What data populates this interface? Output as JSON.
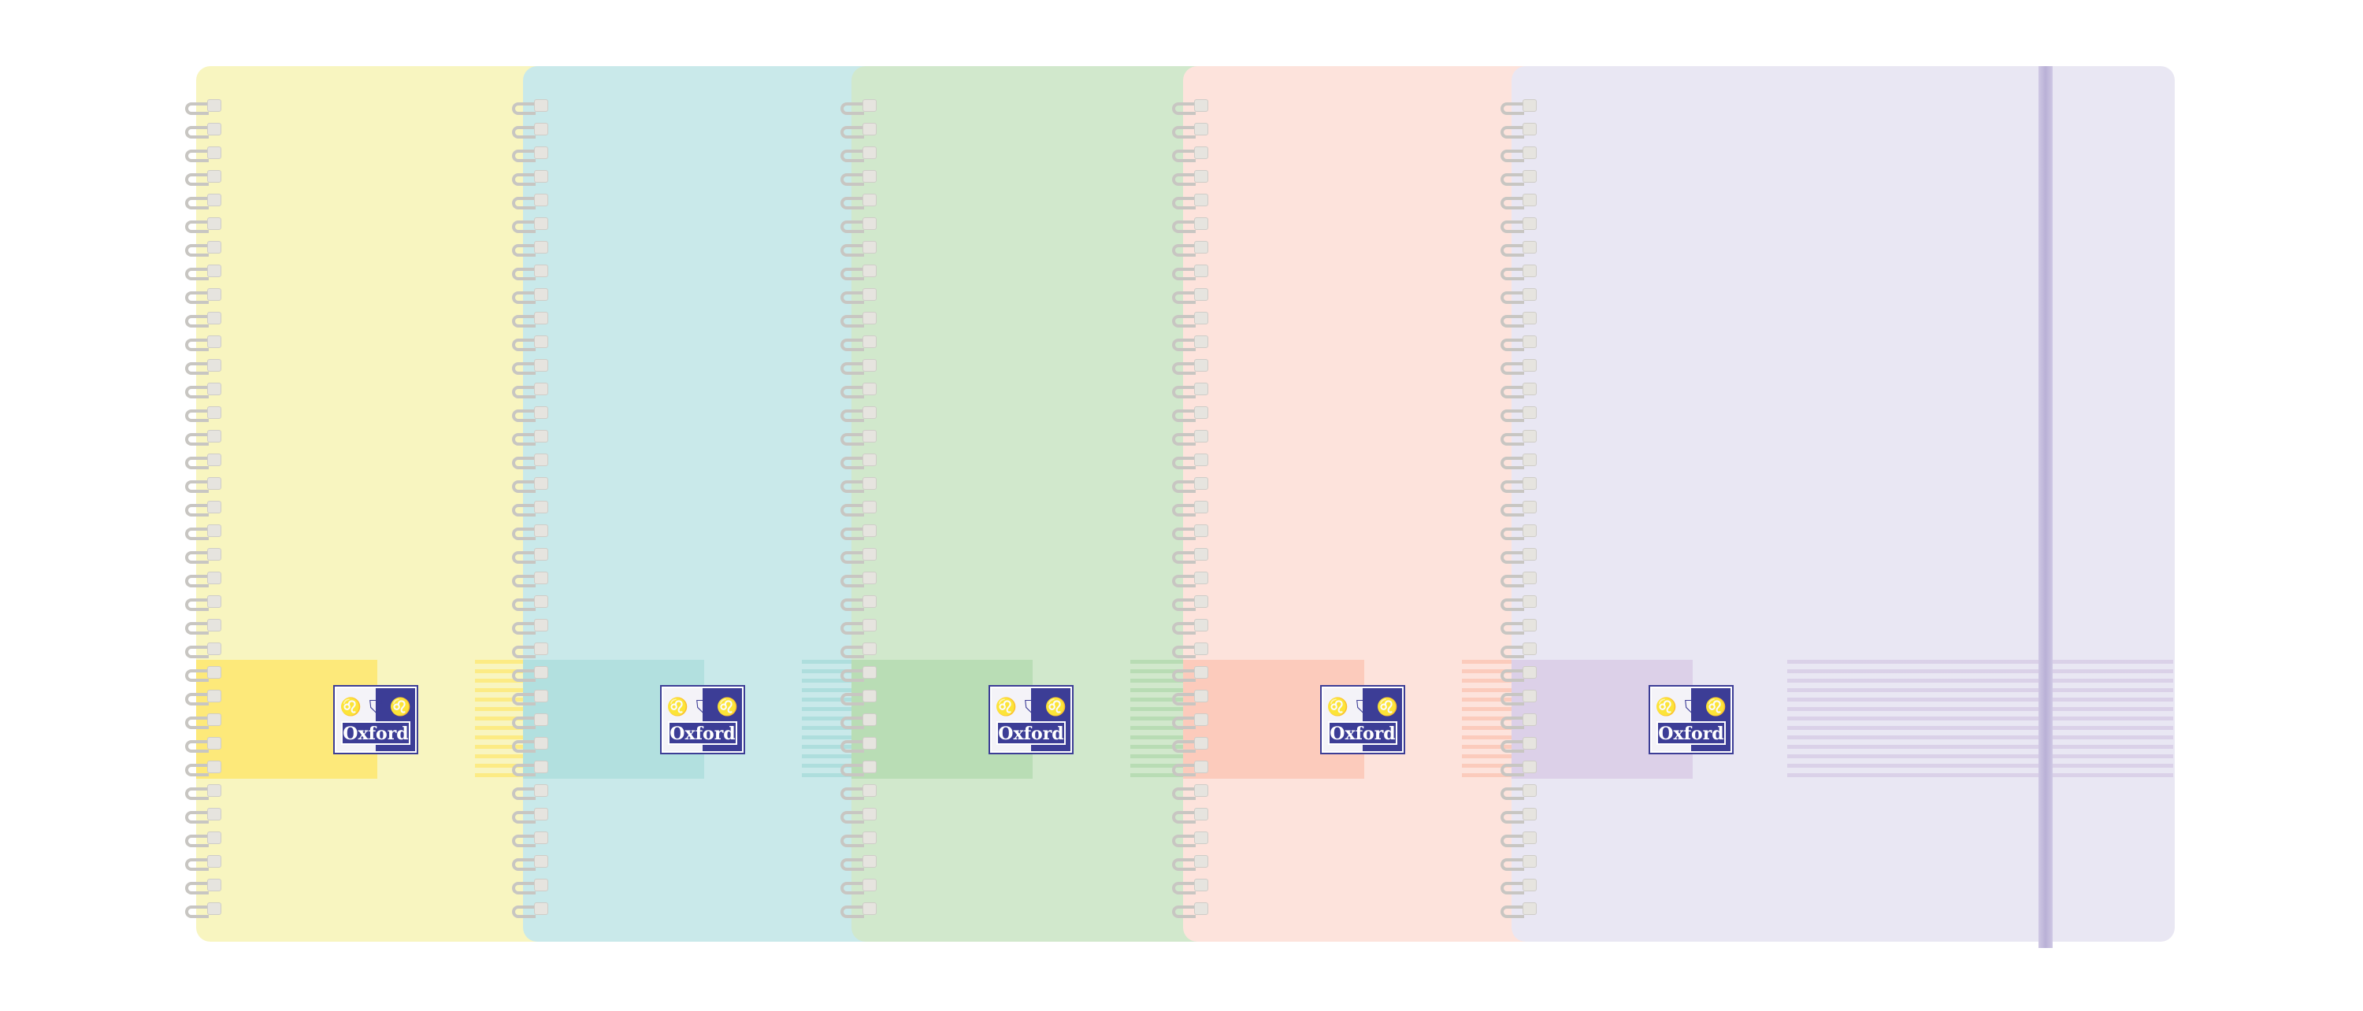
{
  "brand": "Oxford",
  "notebooks": [
    {
      "name": "yellow",
      "cover": "#f8f5c0",
      "band": "#fde97a",
      "stripe": "#fde97a",
      "logo_text": "Oxford"
    },
    {
      "name": "blue",
      "cover": "#c9e9ea",
      "band": "#b2e0df",
      "stripe": "#a9dcdb",
      "logo_text": "Oxford"
    },
    {
      "name": "green",
      "cover": "#d1e8cc",
      "band": "#b9ddb5",
      "stripe": "#b3dab0",
      "logo_text": "Oxford"
    },
    {
      "name": "pink",
      "cover": "#fde3dc",
      "band": "#fccbbc",
      "stripe": "#fbc7b6",
      "logo_text": "Oxford"
    },
    {
      "name": "lavender",
      "cover": "#e9e7f3",
      "band": "#dcd0e8",
      "stripe": "#d8cde6",
      "logo_text": "Oxford"
    }
  ],
  "logo_color": "#3c3d96"
}
